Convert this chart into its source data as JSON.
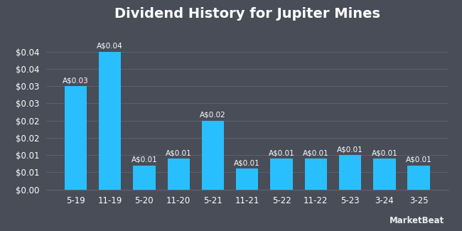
{
  "title": "Dividend History for Jupiter Mines",
  "categories": [
    "5-19",
    "11-19",
    "5-20",
    "11-20",
    "5-21",
    "11-21",
    "5-22",
    "11-22",
    "5-23",
    "3-24",
    "3-25"
  ],
  "values": [
    0.03,
    0.04,
    0.007,
    0.009,
    0.02,
    0.006,
    0.009,
    0.009,
    0.01,
    0.009,
    0.007
  ],
  "bar_labels": [
    "A$0.03",
    "A$0.04",
    "A$0.01",
    "A$0.01",
    "A$0.02",
    "A$0.01",
    "A$0.01",
    "A$0.01",
    "A$0.01",
    "A$0.01",
    "A$0.01"
  ],
  "bar_color": "#29BFFF",
  "background_color": "#484d58",
  "text_color": "#ffffff",
  "grid_color": "#5c6170",
  "title_fontsize": 14,
  "label_fontsize": 7.5,
  "tick_fontsize": 8.5,
  "ylim": [
    0,
    0.047
  ],
  "ytick_vals": [
    0.0,
    0.005,
    0.01,
    0.015,
    0.02,
    0.025,
    0.03,
    0.035,
    0.04
  ],
  "ytick_labels": [
    "$0.00",
    "$0.01",
    "$0.01",
    "$0.02",
    "$0.02",
    "$0.03",
    "$0.03",
    "$0.04",
    "$0.04"
  ],
  "watermark": "MarketBeat"
}
